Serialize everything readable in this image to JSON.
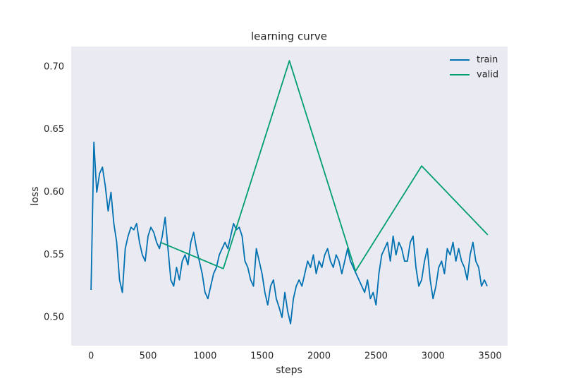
{
  "chart_data": {
    "type": "line",
    "title": "learning curve",
    "x_label": "steps",
    "y_label": "loss",
    "xlim": [
      -174,
      3654
    ],
    "ylim": [
      0.4775,
      0.7163
    ],
    "xticks": [
      0,
      500,
      1000,
      1500,
      2000,
      2500,
      3000,
      3500
    ],
    "yticks": [
      {
        "value": 0.5,
        "label": "0.50"
      },
      0.55,
      {
        "value": 0.6,
        "label": "0.60"
      },
      0.65,
      {
        "value": 0.7,
        "label": "0.70"
      }
    ],
    "grid": false,
    "legend": "upper right",
    "background": "#eaeaf2",
    "series": [
      {
        "name": "train",
        "color": "#0072b2",
        "x": [
          0,
          25,
          50,
          75,
          100,
          125,
          150,
          175,
          200,
          225,
          250,
          275,
          300,
          325,
          350,
          375,
          400,
          425,
          450,
          475,
          500,
          525,
          550,
          575,
          600,
          625,
          650,
          675,
          700,
          725,
          750,
          775,
          800,
          825,
          850,
          875,
          900,
          925,
          950,
          975,
          1000,
          1025,
          1050,
          1075,
          1100,
          1125,
          1150,
          1175,
          1200,
          1225,
          1250,
          1275,
          1300,
          1325,
          1350,
          1375,
          1400,
          1425,
          1450,
          1475,
          1500,
          1525,
          1550,
          1575,
          1600,
          1625,
          1650,
          1675,
          1700,
          1725,
          1750,
          1775,
          1800,
          1825,
          1850,
          1875,
          1900,
          1925,
          1950,
          1975,
          2000,
          2025,
          2050,
          2075,
          2100,
          2125,
          2150,
          2175,
          2200,
          2225,
          2250,
          2275,
          2300,
          2325,
          2350,
          2375,
          2400,
          2425,
          2450,
          2475,
          2500,
          2525,
          2550,
          2575,
          2600,
          2625,
          2650,
          2675,
          2700,
          2725,
          2750,
          2775,
          2800,
          2825,
          2850,
          2875,
          2900,
          2925,
          2950,
          2975,
          3000,
          3025,
          3050,
          3075,
          3100,
          3125,
          3150,
          3175,
          3200,
          3225,
          3250,
          3275,
          3300,
          3325,
          3350,
          3375,
          3400,
          3425,
          3450,
          3475
        ],
        "values": [
          0.522,
          0.64,
          0.6,
          0.615,
          0.62,
          0.605,
          0.585,
          0.6,
          0.575,
          0.56,
          0.53,
          0.52,
          0.555,
          0.565,
          0.572,
          0.57,
          0.575,
          0.56,
          0.55,
          0.545,
          0.565,
          0.572,
          0.568,
          0.56,
          0.555,
          0.565,
          0.58,
          0.555,
          0.53,
          0.525,
          0.54,
          0.53,
          0.545,
          0.55,
          0.542,
          0.56,
          0.568,
          0.555,
          0.545,
          0.535,
          0.52,
          0.515,
          0.525,
          0.535,
          0.54,
          0.55,
          0.555,
          0.56,
          0.555,
          0.565,
          0.575,
          0.57,
          0.572,
          0.565,
          0.545,
          0.54,
          0.53,
          0.525,
          0.555,
          0.545,
          0.535,
          0.52,
          0.51,
          0.525,
          0.53,
          0.515,
          0.508,
          0.5,
          0.52,
          0.505,
          0.495,
          0.515,
          0.525,
          0.53,
          0.525,
          0.535,
          0.545,
          0.54,
          0.55,
          0.535,
          0.545,
          0.54,
          0.55,
          0.555,
          0.545,
          0.54,
          0.55,
          0.545,
          0.535,
          0.545,
          0.555,
          0.545,
          0.54,
          0.535,
          0.53,
          0.525,
          0.52,
          0.53,
          0.515,
          0.52,
          0.51,
          0.535,
          0.55,
          0.555,
          0.56,
          0.545,
          0.565,
          0.55,
          0.56,
          0.555,
          0.545,
          0.545,
          0.56,
          0.565,
          0.54,
          0.525,
          0.53,
          0.545,
          0.555,
          0.53,
          0.515,
          0.525,
          0.54,
          0.545,
          0.535,
          0.555,
          0.55,
          0.56,
          0.545,
          0.555,
          0.545,
          0.54,
          0.53,
          0.55,
          0.56,
          0.545,
          0.54,
          0.525,
          0.53,
          0.525
        ]
      },
      {
        "name": "valid",
        "color": "#009e73",
        "x": [
          610,
          1160,
          1740,
          2320,
          2900,
          3480
        ],
        "values": [
          0.56,
          0.539,
          0.705,
          0.537,
          0.621,
          0.566
        ]
      }
    ]
  }
}
